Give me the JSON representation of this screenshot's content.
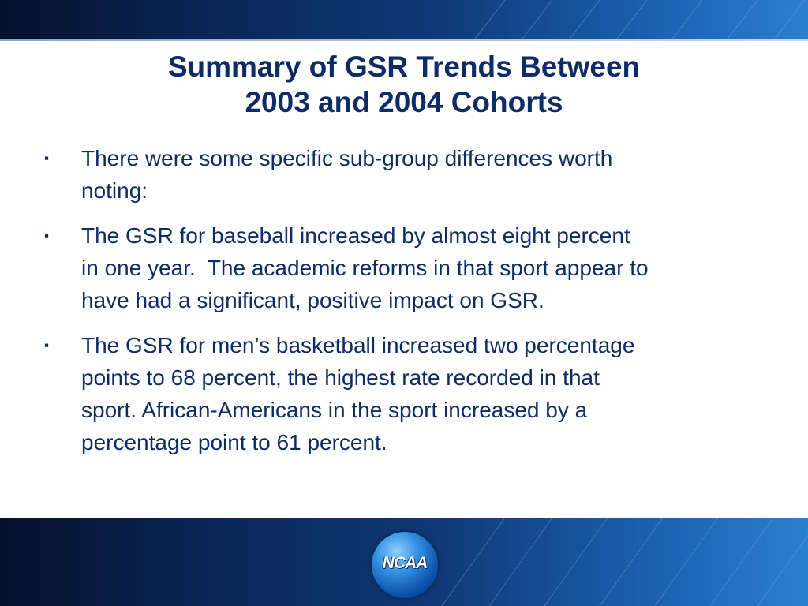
{
  "slide": {
    "title_line1": "Summary of GSR Trends Between",
    "title_line2": "2003 and 2004 Cohorts",
    "bullet_marker": "▪",
    "bullets": [
      {
        "line1": "There were some specific sub-group differences worth",
        "line2": "noting:"
      },
      {
        "line1": "The GSR for baseball increased by almost eight percent",
        "line2": "in one year.  The academic reforms in that sport appear to",
        "line3": "have had a significant, positive impact on GSR."
      },
      {
        "line1": "The GSR for men’s basketball increased two percentage",
        "line2": "points to 68 percent, the highest rate recorded in that",
        "line3": "sport. African-Americans in the sport increased by a",
        "line4": "percentage point to 61 percent."
      }
    ]
  },
  "logo": {
    "text": "NCAA"
  },
  "colors": {
    "title": "#0d2b66",
    "banner_dark": "#04112c",
    "banner_light": "#2b7fcf"
  }
}
